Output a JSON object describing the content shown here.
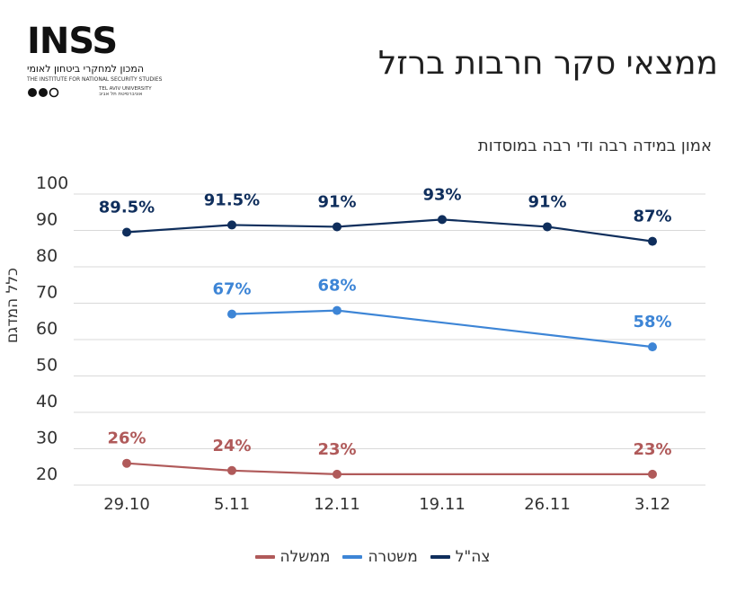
{
  "logo": {
    "word": "INSS",
    "hebrew": "המכון למחקרי ביטחון לאומי",
    "english": "THE INSTITUTE FOR NATIONAL SECURITY STUDIES",
    "tau_en": "TEL AVIV UNIVERSITY",
    "tau_he": "אוניברסיטת תל אביב"
  },
  "title": "ממצאי סקר חרבות ברזל",
  "subtitle": "אמון במידה רבה ודי רבה במוסדות",
  "chart_data": {
    "type": "line",
    "title": "ממצאי סקר חרבות ברזל",
    "subtitle": "אמון במידה רבה ודי רבה במוסדות",
    "ylabel": "כלל המדגם",
    "xlabel": "",
    "categories": [
      "29.10",
      "5.11",
      "12.11",
      "19.11",
      "26.11",
      "3.12"
    ],
    "ylim": [
      20,
      100
    ],
    "yticks": [
      20,
      30,
      40,
      50,
      60,
      70,
      80,
      90,
      100
    ],
    "grid": true,
    "legend_position": "bottom",
    "series": [
      {
        "name": "צה\"ל",
        "color": "#0f2e5c",
        "values": [
          89.5,
          91.5,
          91,
          93,
          91,
          87
        ],
        "labels": [
          "89.5%",
          "91.5%",
          "91%",
          "93%",
          "91%",
          "87%"
        ]
      },
      {
        "name": "משטרה",
        "color": "#3d85d6",
        "values": [
          null,
          67,
          68,
          null,
          null,
          58
        ],
        "labels": [
          null,
          "67%",
          "68%",
          null,
          null,
          "58%"
        ]
      },
      {
        "name": "ממשלה",
        "color": "#b05a5a",
        "values": [
          26,
          24,
          23,
          null,
          null,
          23
        ],
        "labels": [
          "26%",
          "24%",
          "23%",
          null,
          null,
          "23%"
        ]
      }
    ]
  }
}
